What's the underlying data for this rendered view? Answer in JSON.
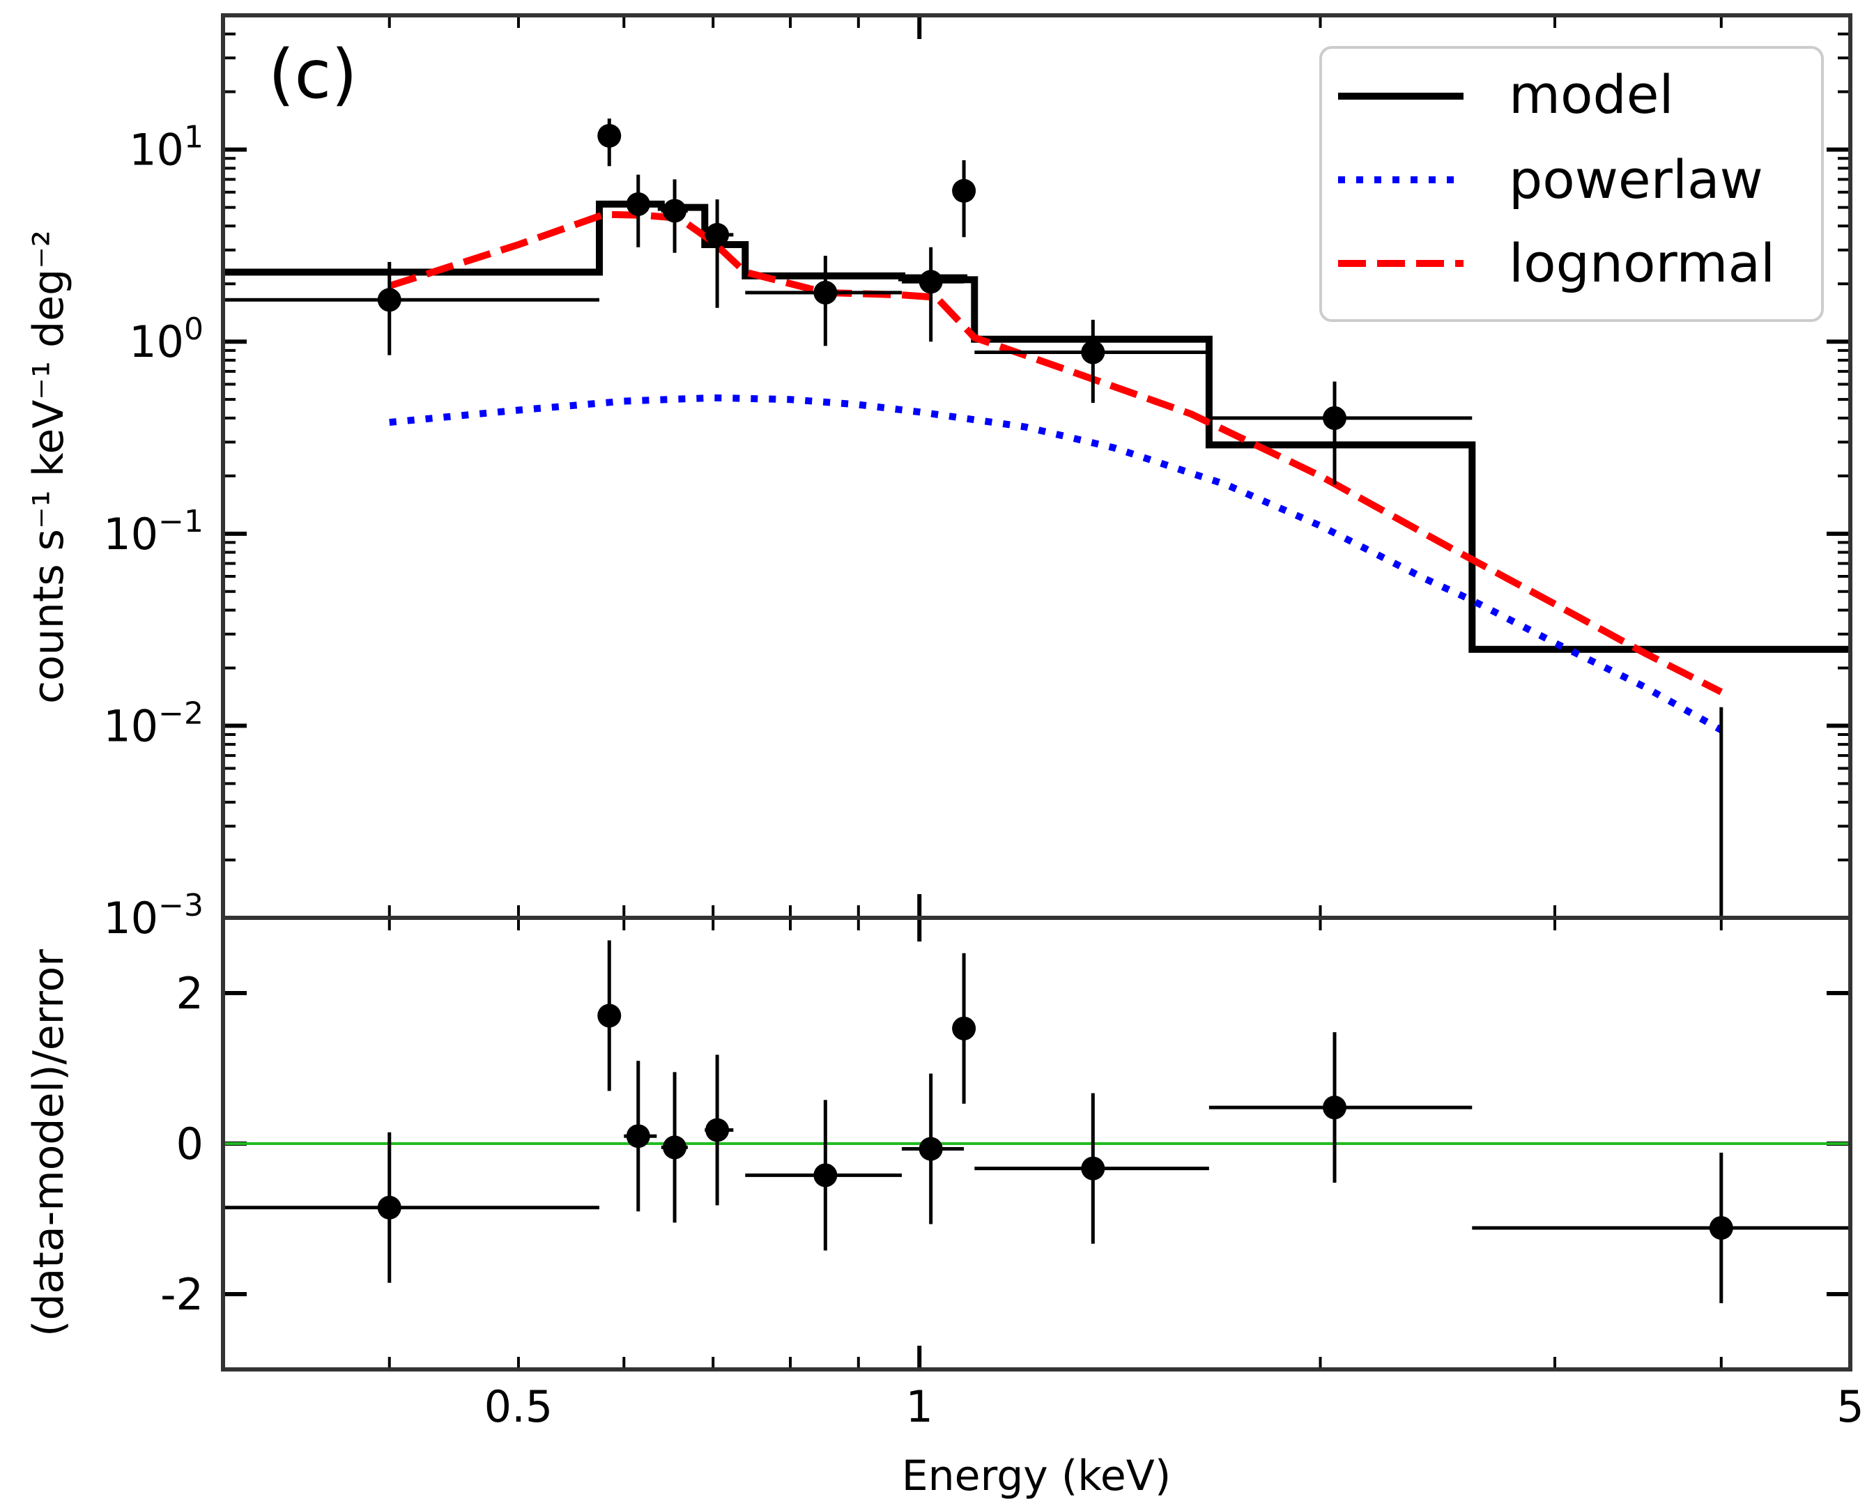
{
  "panel_label": "(c)",
  "legend": {
    "placement": "top-right",
    "entries": [
      {
        "label": "model",
        "style": "solid",
        "color": "#000000"
      },
      {
        "label": "powerlaw",
        "style": "dotted",
        "color": "#0000ff"
      },
      {
        "label": "lognormal",
        "style": "dashed",
        "color": "#ff0000"
      }
    ]
  },
  "chart_data": [
    {
      "type": "line",
      "panel": "top",
      "title": "",
      "xlabel": "",
      "ylabel": "counts s⁻¹ keV⁻¹ deg⁻²",
      "xscale": "log",
      "yscale": "log",
      "xlim": [
        0.3,
        5
      ],
      "ylim": [
        0.001,
        50
      ],
      "yticks": [
        {
          "value": 10,
          "label_base": "10",
          "label_exp": "1"
        },
        {
          "value": 1,
          "label_base": "10",
          "label_exp": "0"
        },
        {
          "value": 0.1,
          "label_base": "10",
          "label_exp": "−1"
        },
        {
          "value": 0.01,
          "label_base": "10",
          "label_exp": "−2"
        },
        {
          "value": 0.001,
          "label_base": "10",
          "label_exp": "−3"
        }
      ],
      "data_points": [
        {
          "x": 0.4,
          "y": 1.65,
          "xlo": 0.3,
          "xhi": 0.575,
          "ylo": 0.85,
          "yhi": 2.6
        },
        {
          "x": 0.585,
          "y": 11.8,
          "xlo": 0.575,
          "xhi": 0.595,
          "ylo": 8.2,
          "yhi": 14.5
        },
        {
          "x": 0.615,
          "y": 5.2,
          "xlo": 0.6,
          "xhi": 0.635,
          "ylo": 3.1,
          "yhi": 7.4
        },
        {
          "x": 0.655,
          "y": 4.8,
          "xlo": 0.64,
          "xhi": 0.67,
          "ylo": 2.9,
          "yhi": 7.0
        },
        {
          "x": 0.705,
          "y": 3.6,
          "xlo": 0.69,
          "xhi": 0.725,
          "ylo": 1.5,
          "yhi": 5.5
        },
        {
          "x": 0.85,
          "y": 1.8,
          "xlo": 0.74,
          "xhi": 0.97,
          "ylo": 0.95,
          "yhi": 2.8
        },
        {
          "x": 1.02,
          "y": 2.05,
          "xlo": 0.97,
          "xhi": 1.08,
          "ylo": 1.0,
          "yhi": 3.1
        },
        {
          "x": 1.08,
          "y": 6.1,
          "xlo": 1.075,
          "xhi": 1.085,
          "ylo": 3.5,
          "yhi": 8.8
        },
        {
          "x": 1.35,
          "y": 0.88,
          "xlo": 1.1,
          "xhi": 1.65,
          "ylo": 0.48,
          "yhi": 1.3
        },
        {
          "x": 2.05,
          "y": 0.4,
          "xlo": 1.65,
          "xhi": 2.6,
          "ylo": 0.18,
          "yhi": 0.62
        },
        {
          "x": 4.0,
          "y": 0.001,
          "xlo": 4.0,
          "xhi": 4.0,
          "ylo": 0.001,
          "yhi": 0.0125
        }
      ],
      "series": [
        {
          "name": "model",
          "style": "step",
          "color": "#000000",
          "x": [
            0.3,
            0.575,
            0.575,
            0.64,
            0.64,
            0.67,
            0.67,
            0.69,
            0.69,
            0.725,
            0.725,
            0.74,
            0.74,
            0.97,
            0.97,
            1.08,
            1.08,
            1.1,
            1.1,
            1.65,
            1.65,
            2.6,
            2.6,
            5.0
          ],
          "y": [
            2.3,
            2.3,
            5.2,
            5.2,
            5.0,
            5.0,
            5.0,
            5.0,
            3.2,
            3.2,
            3.2,
            3.2,
            2.2,
            2.2,
            2.15,
            2.15,
            2.1,
            2.1,
            1.03,
            1.03,
            0.29,
            0.29,
            0.025,
            0.025
          ]
        },
        {
          "name": "powerlaw",
          "style": "dotted",
          "color": "#0000ff",
          "x": [
            0.4,
            0.5,
            0.6,
            0.7,
            0.8,
            0.9,
            1.0,
            1.2,
            1.4,
            1.7,
            2.0,
            2.4,
            2.6,
            3.0,
            3.5,
            4.0
          ],
          "y": [
            0.38,
            0.44,
            0.49,
            0.51,
            0.5,
            0.47,
            0.43,
            0.36,
            0.28,
            0.18,
            0.11,
            0.058,
            0.045,
            0.027,
            0.016,
            0.0095
          ]
        },
        {
          "name": "lognormal",
          "style": "dashed",
          "color": "#ff0000",
          "x": [
            0.4,
            0.5,
            0.58,
            0.62,
            0.66,
            0.7,
            0.74,
            0.85,
            0.97,
            1.03,
            1.1,
            1.3,
            1.6,
            2.0,
            2.5,
            3.0,
            3.5,
            4.0
          ],
          "y": [
            1.95,
            3.2,
            4.6,
            4.55,
            4.4,
            3.3,
            2.3,
            1.8,
            1.75,
            1.7,
            1.05,
            0.7,
            0.42,
            0.2,
            0.085,
            0.043,
            0.024,
            0.015
          ]
        }
      ]
    },
    {
      "type": "scatter",
      "panel": "bottom",
      "title": "",
      "xlabel": "Energy (keV)",
      "ylabel": "(data-model)/error",
      "xscale": "log",
      "xlim": [
        0.3,
        5
      ],
      "ylim": [
        -3,
        3
      ],
      "xticks": [
        {
          "value": 0.5,
          "label": "0.5"
        },
        {
          "value": 1,
          "label": "1"
        },
        {
          "value": 5,
          "label": "5"
        }
      ],
      "yticks": [
        {
          "value": 2,
          "label": "2"
        },
        {
          "value": 0,
          "label": "0"
        },
        {
          "value": -2,
          "label": "-2"
        }
      ],
      "reference_line": {
        "y": 0,
        "color": "#22bb22"
      },
      "data_points": [
        {
          "x": 0.4,
          "y": -0.85,
          "xlo": 0.3,
          "xhi": 0.575,
          "ylo": -1.85,
          "yhi": 0.15
        },
        {
          "x": 0.585,
          "y": 1.7,
          "xlo": 0.585,
          "xhi": 0.585,
          "ylo": 0.7,
          "yhi": 2.7
        },
        {
          "x": 0.615,
          "y": 0.1,
          "xlo": 0.6,
          "xhi": 0.635,
          "ylo": -0.9,
          "yhi": 1.1
        },
        {
          "x": 0.655,
          "y": -0.05,
          "xlo": 0.64,
          "xhi": 0.67,
          "ylo": -1.05,
          "yhi": 0.95
        },
        {
          "x": 0.705,
          "y": 0.18,
          "xlo": 0.69,
          "xhi": 0.725,
          "ylo": -0.82,
          "yhi": 1.18
        },
        {
          "x": 0.85,
          "y": -0.42,
          "xlo": 0.74,
          "xhi": 0.97,
          "ylo": -1.42,
          "yhi": 0.58
        },
        {
          "x": 1.02,
          "y": -0.07,
          "xlo": 0.97,
          "xhi": 1.08,
          "ylo": -1.07,
          "yhi": 0.93
        },
        {
          "x": 1.08,
          "y": 1.53,
          "xlo": 1.08,
          "xhi": 1.08,
          "ylo": 0.53,
          "yhi": 2.53
        },
        {
          "x": 1.35,
          "y": -0.33,
          "xlo": 1.1,
          "xhi": 1.65,
          "ylo": -1.33,
          "yhi": 0.67
        },
        {
          "x": 2.05,
          "y": 0.48,
          "xlo": 1.65,
          "xhi": 2.6,
          "ylo": -0.52,
          "yhi": 1.48
        },
        {
          "x": 4.0,
          "y": -1.12,
          "xlo": 2.6,
          "xhi": 5.0,
          "ylo": -2.12,
          "yhi": -0.12
        }
      ]
    }
  ]
}
